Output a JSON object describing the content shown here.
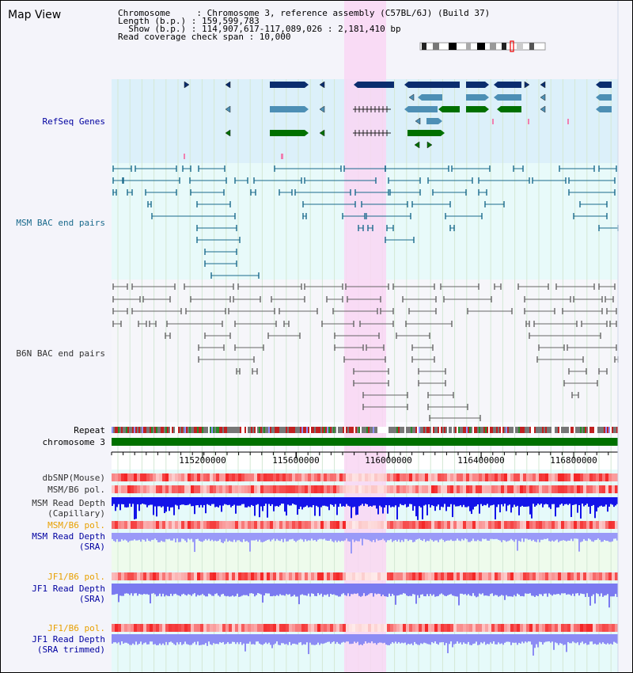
{
  "view_title": "Map View",
  "info": {
    "chromosome_line": "Chromosome     : Chromosome 3, reference assembly (C57BL/6J) (Build 37)",
    "length_line": "Length (b.p.) : 159,599,783",
    "show_line": "  Show (b.p.) : 114,907,617-117,089,026 : 2,181,410 bp",
    "coverage_line": "Read coverage check span : 10,000"
  },
  "axis_ticks": [
    "115200000",
    "115600000",
    "116000000",
    "116400000",
    "116800000"
  ],
  "colors": {
    "refseq_bg": "#dcf0fa",
    "msm_bac_bg": "#e8fafa",
    "b6n_bac_bg": "#f2f2f8",
    "highlight": "#f9d6f3",
    "dark_navy": "#0a2d6e",
    "steel_blue": "#4d8fb5",
    "green": "#007000",
    "teal_line": "#1a6a8c",
    "gray_line": "#666666",
    "label_blue": "#0000a0",
    "label_teal": "#1a6a8c",
    "label_orange": "#e8a000"
  },
  "tracks": {
    "refseq": [
      "RefSeq Genes"
    ],
    "msm_bac": [
      "MSM BAC end pairs"
    ],
    "b6n_bac": [
      "B6N BAC end pairs"
    ],
    "repeat": [
      "Repeat"
    ],
    "chromosome": [
      "chromosome 3"
    ],
    "dbsnp": [
      "dbSNP(Mouse)"
    ],
    "msm_pol": [
      "MSM/B6 pol."
    ],
    "msm_depth_cap": [
      "MSM Read Depth",
      "(Capillary)"
    ],
    "msm_pol2": [
      "MSM/B6 pol."
    ],
    "msm_depth_sra": [
      "MSM Read Depth",
      "(SRA)"
    ],
    "jf1_pol": [
      "JF1/B6 pol."
    ],
    "jf1_depth_sra": [
      "JF1 Read Depth",
      "(SRA)"
    ],
    "jf1_pol2": [
      "JF1/B6 pol."
    ],
    "jf1_depth_trim": [
      "JF1 Read Depth",
      "(SRA trimmed)"
    ]
  }
}
